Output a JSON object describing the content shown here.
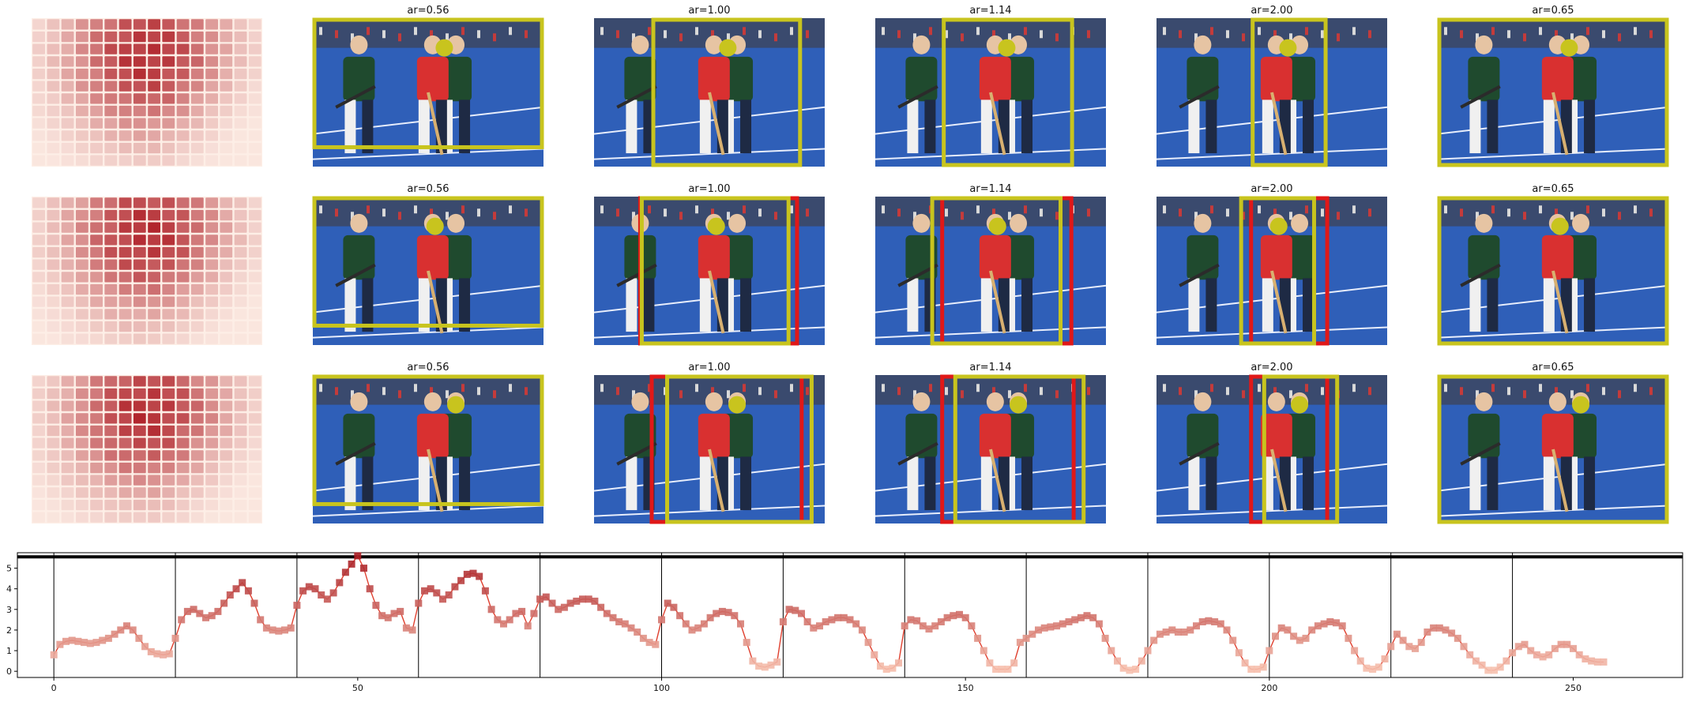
{
  "panel_titles": [
    "ar=0.56",
    "ar=1.00",
    "ar=1.14",
    "ar=2.00",
    "ar=0.65"
  ],
  "colors": {
    "crop_box": "#c8c41e",
    "marker": "#c8c41e",
    "alt_box": "#e01818",
    "heat_low": "#fdeee6",
    "heat_high": "#b0232a",
    "line": "#e0402f",
    "field": "#2f5fb8"
  },
  "heatmap": {
    "rows": 12,
    "cols": 16,
    "description_type": "saliency grid"
  },
  "rows": [
    {
      "boxes": [
        {
          "type": "crop",
          "rel": [
            0.0,
            0.0,
            1.0,
            0.88
          ],
          "marker": [
            0.57,
            0.2
          ]
        },
        {
          "type": "crop",
          "rel": [
            0.25,
            0.0,
            0.9,
            1.0
          ],
          "marker": [
            0.58,
            0.2
          ]
        },
        {
          "type": "crop",
          "rel": [
            0.29,
            0.0,
            0.86,
            1.0
          ],
          "marker": [
            0.57,
            0.2
          ]
        },
        {
          "type": "crop",
          "rel": [
            0.41,
            0.0,
            0.74,
            1.0
          ],
          "marker": [
            0.57,
            0.2
          ]
        },
        {
          "type": "crop",
          "rel": [
            0.0,
            0.0,
            1.0,
            1.0
          ],
          "marker": [
            0.57,
            0.2
          ]
        }
      ]
    },
    {
      "boxes": [
        {
          "type": "crop",
          "rel": [
            0.0,
            0.0,
            1.0,
            0.88
          ],
          "marker": [
            0.53,
            0.2
          ],
          "red": []
        },
        {
          "type": "crop",
          "rel": [
            0.2,
            0.0,
            0.85,
            1.0
          ],
          "marker": [
            0.53,
            0.2
          ],
          "red": [
            0.2,
            0.88
          ]
        },
        {
          "type": "crop",
          "rel": [
            0.24,
            0.0,
            0.81,
            1.0
          ],
          "marker": [
            0.53,
            0.2
          ],
          "red": [
            0.29,
            0.85
          ]
        },
        {
          "type": "crop",
          "rel": [
            0.36,
            0.0,
            0.69,
            1.0
          ],
          "marker": [
            0.53,
            0.2
          ],
          "red": [
            0.41,
            0.74
          ]
        },
        {
          "type": "crop",
          "rel": [
            0.0,
            0.0,
            1.0,
            1.0
          ],
          "marker": [
            0.53,
            0.2
          ],
          "red": []
        }
      ]
    },
    {
      "boxes": [
        {
          "type": "crop",
          "rel": [
            0.0,
            0.0,
            1.0,
            0.88
          ],
          "marker": [
            0.62,
            0.2
          ],
          "red": []
        },
        {
          "type": "crop",
          "rel": [
            0.31,
            0.0,
            0.95,
            1.0
          ],
          "marker": [
            0.62,
            0.2
          ],
          "red": [
            0.25,
            0.9
          ]
        },
        {
          "type": "crop",
          "rel": [
            0.34,
            0.0,
            0.91,
            1.0
          ],
          "marker": [
            0.62,
            0.2
          ],
          "red": [
            0.29,
            0.86
          ]
        },
        {
          "type": "crop",
          "rel": [
            0.46,
            0.0,
            0.79,
            1.0
          ],
          "marker": [
            0.62,
            0.2
          ],
          "red": [
            0.41,
            0.74
          ]
        },
        {
          "type": "crop",
          "rel": [
            0.0,
            0.0,
            1.0,
            1.0
          ],
          "marker": [
            0.62,
            0.2
          ],
          "red": []
        }
      ]
    }
  ],
  "chart_data": {
    "type": "line",
    "title": "",
    "xlabel": "",
    "ylabel": "",
    "xlim": [
      -6,
      268
    ],
    "ylim": [
      -0.3,
      5.75
    ],
    "xticks": [
      0,
      50,
      100,
      150,
      200,
      250
    ],
    "yticks": [
      0,
      1,
      2,
      3,
      4,
      5
    ],
    "vlines": [
      0,
      20,
      40,
      60,
      80,
      100,
      120,
      140,
      160,
      180,
      200,
      220,
      240
    ],
    "hline": 5.55,
    "grid": false,
    "series": [
      {
        "values": [
          0.8,
          1.3,
          1.45,
          1.5,
          1.45,
          1.4,
          1.35,
          1.4,
          1.5,
          1.6,
          1.8,
          2.0,
          2.2,
          2.0,
          1.6,
          1.2,
          0.95,
          0.85,
          0.8,
          0.85,
          1.6,
          2.5,
          2.9,
          3.0,
          2.8,
          2.6,
          2.7,
          2.9,
          3.3,
          3.7,
          4.0,
          4.3,
          3.9,
          3.3,
          2.5,
          2.1,
          2.0,
          1.95,
          2.0,
          2.1,
          3.2,
          3.9,
          4.1,
          4.0,
          3.7,
          3.5,
          3.8,
          4.3,
          4.8,
          5.2,
          5.6,
          5.0,
          4.0,
          3.2,
          2.7,
          2.6,
          2.8,
          2.9,
          2.1,
          2.0,
          3.3,
          3.9,
          4.0,
          3.8,
          3.5,
          3.7,
          4.1,
          4.4,
          4.7,
          4.75,
          4.6,
          3.9,
          3.0,
          2.5,
          2.3,
          2.5,
          2.8,
          2.9,
          2.2,
          2.8,
          3.5,
          3.6,
          3.3,
          3.0,
          3.1,
          3.3,
          3.4,
          3.5,
          3.5,
          3.4,
          3.1,
          2.8,
          2.6,
          2.4,
          2.3,
          2.1,
          1.9,
          1.6,
          1.4,
          1.3,
          2.5,
          3.3,
          3.1,
          2.7,
          2.3,
          2.0,
          2.1,
          2.3,
          2.6,
          2.8,
          2.9,
          2.85,
          2.7,
          2.3,
          1.4,
          0.5,
          0.25,
          0.2,
          0.3,
          0.45,
          2.4,
          3.0,
          2.95,
          2.8,
          2.4,
          2.1,
          2.2,
          2.4,
          2.5,
          2.6,
          2.6,
          2.5,
          2.3,
          2.0,
          1.4,
          0.8,
          0.25,
          0.1,
          0.15,
          0.4,
          2.2,
          2.5,
          2.45,
          2.2,
          2.05,
          2.2,
          2.4,
          2.6,
          2.7,
          2.75,
          2.6,
          2.2,
          1.6,
          1.0,
          0.4,
          0.1,
          0.1,
          0.1,
          0.4,
          1.4,
          1.6,
          1.8,
          2.0,
          2.1,
          2.15,
          2.2,
          2.3,
          2.4,
          2.5,
          2.6,
          2.7,
          2.6,
          2.3,
          1.6,
          1.0,
          0.5,
          0.15,
          0.05,
          0.1,
          0.5,
          1.0,
          1.5,
          1.8,
          1.9,
          2.0,
          1.9,
          1.9,
          2.0,
          2.2,
          2.4,
          2.45,
          2.4,
          2.3,
          2.0,
          1.5,
          0.9,
          0.4,
          0.1,
          0.1,
          0.2,
          1.0,
          1.7,
          2.1,
          2.0,
          1.7,
          1.5,
          1.6,
          2.0,
          2.2,
          2.3,
          2.4,
          2.35,
          2.2,
          1.6,
          1.0,
          0.5,
          0.15,
          0.1,
          0.2,
          0.6,
          1.2,
          1.8,
          1.5,
          1.2,
          1.1,
          1.4,
          1.9,
          2.1,
          2.1,
          2.0,
          1.85,
          1.6,
          1.2,
          0.8,
          0.5,
          0.3,
          0.05,
          0.05,
          0.2,
          0.5,
          0.9,
          1.2,
          1.3,
          1.0,
          0.8,
          0.7,
          0.8,
          1.1,
          1.3,
          1.3,
          1.1,
          0.8,
          0.6,
          0.5,
          0.45,
          0.45
        ]
      }
    ]
  }
}
